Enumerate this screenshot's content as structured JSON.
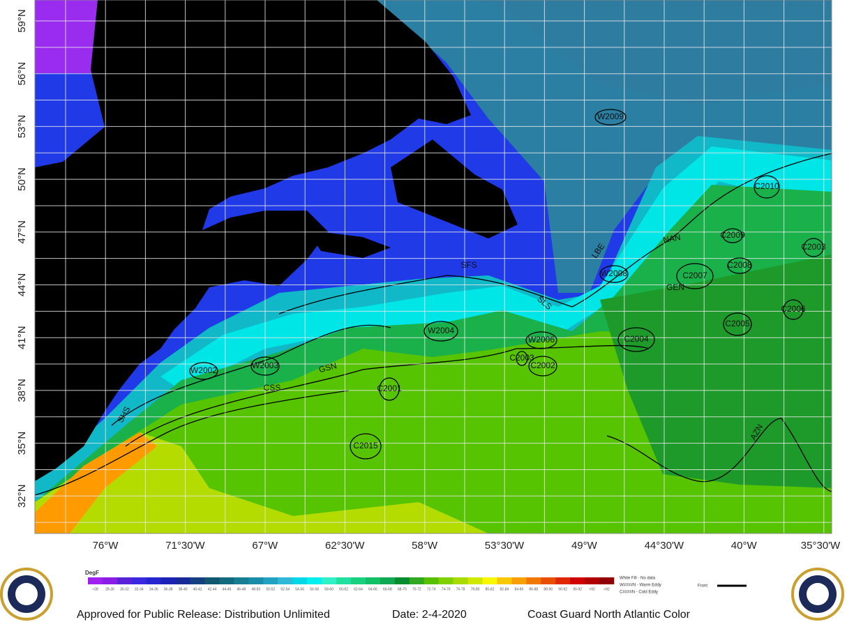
{
  "map": {
    "latitude_labels": [
      "59°N",
      "56°N",
      "53°N",
      "50°N",
      "47°N",
      "44°N",
      "41°N",
      "38°N",
      "35°N",
      "32°N"
    ],
    "longitude_labels": [
      "76°W",
      "71°30'W",
      "67°W",
      "62°30'W",
      "58°W",
      "53°30'W",
      "49°W",
      "44°30'W",
      "40°W",
      "35°30'W"
    ],
    "eddies": [
      "W2009",
      "C2010",
      "C2009",
      "C2003",
      "C2008",
      "W2008",
      "C2007",
      "C2006",
      "C2005",
      "C2004",
      "W2004",
      "W2006",
      "C2003",
      "C2002",
      "W2002",
      "W2003",
      "C2001",
      "C2015"
    ],
    "fronts": [
      "SFS",
      "LBE",
      "NAN",
      "GEN",
      "SLS",
      "GSN",
      "CSS",
      "SHS",
      "AZN"
    ]
  },
  "legend": {
    "title": "DegF",
    "colors": [
      "#a020f0",
      "#8a1ee6",
      "#5a22d8",
      "#3a28e0",
      "#2626d0",
      "#1c22b4",
      "#182a98",
      "#144080",
      "#10566e",
      "#126a7e",
      "#167e92",
      "#1a8ea8",
      "#22a2c0",
      "#30b8d8",
      "#00d8e8",
      "#00f0f0",
      "#30f0c8",
      "#20e0a0",
      "#18d080",
      "#12c068",
      "#10a850",
      "#088c30",
      "#30a820",
      "#58c000",
      "#80d000",
      "#a8dc00",
      "#d0e800",
      "#f8f800",
      "#f8c800",
      "#f8a000",
      "#f07800",
      "#e85000",
      "#e02800",
      "#d00000",
      "#b00000",
      "#900000"
    ],
    "ranges": [
      "<28",
      "28-30",
      "30-32",
      "32-34",
      "34-36",
      "36-38",
      "38-40",
      "40-42",
      "42-44",
      "44-46",
      "46-48",
      "48-50",
      "50-52",
      "52-54",
      "54-56",
      "56-58",
      "58-60",
      "60-62",
      "62-64",
      "64-66",
      "66-68",
      "68-70",
      "70-72",
      "72-74",
      "74-76",
      "76-78",
      "78-80",
      "80-82",
      "82-84",
      "84-86",
      "86-88",
      "88-90",
      "90-92",
      "90-92",
      ">92",
      ">92"
    ],
    "key": [
      "White Fill - No data",
      "W####N - Warm Eddy",
      "C####N - Cold Eddy"
    ],
    "front_label": "Front"
  },
  "footer": {
    "release": "Approved for Public Release:  Distribution Unlimited",
    "date": "Date:  2-4-2020",
    "product": "Coast Guard North Atlantic Color"
  }
}
